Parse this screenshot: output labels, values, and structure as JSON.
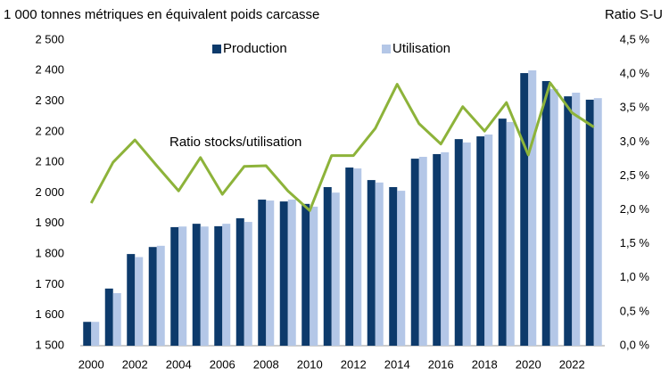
{
  "chart_data": {
    "type": "bar",
    "title": "1 000 tonnes métriques en équivalent poids carcasse",
    "y2_label": "Ratio S-U",
    "categories": [
      "2000",
      null,
      "2002",
      null,
      "2004",
      null,
      "2006",
      null,
      "2008",
      null,
      "2010",
      null,
      "2012",
      null,
      "2014",
      null,
      "2016",
      null,
      "2018",
      null,
      "2020",
      null,
      "2022",
      null
    ],
    "series": [
      {
        "name": "Production",
        "color": "#0d3a6b",
        "values": [
          1578,
          1687,
          1800,
          1823,
          1888,
          1899,
          1891,
          1917,
          1978,
          1972,
          1964,
          2019,
          2083,
          2042,
          2019,
          2112,
          2127,
          2176,
          2185,
          2243,
          2392,
          2366,
          2316,
          2305
        ]
      },
      {
        "name": "Utilisation",
        "color": "#b4c7e7",
        "values": [
          1578,
          1672,
          1790,
          1827,
          1890,
          1890,
          1899,
          1905,
          1975,
          1978,
          1955,
          2001,
          2080,
          2034,
          2007,
          2118,
          2133,
          2165,
          2191,
          2232,
          2401,
          2340,
          2328,
          2310
        ]
      },
      {
        "name": "Ratio stocks/utilisation",
        "color": "#8db33a",
        "type": "line",
        "axis": "y2",
        "values": [
          2.1,
          2.7,
          3.03,
          2.65,
          2.28,
          2.77,
          2.23,
          2.64,
          2.65,
          2.28,
          1.99,
          2.8,
          2.8,
          3.2,
          3.85,
          3.27,
          2.97,
          3.52,
          3.16,
          3.58,
          2.81,
          3.87,
          3.43,
          3.22
        ]
      }
    ],
    "ylim": [
      1500,
      2500
    ],
    "yticks": [
      {
        "value": 1500,
        "label": "1 500"
      },
      {
        "value": 1600,
        "label": "1 600"
      },
      {
        "value": 1700,
        "label": "1 700"
      },
      {
        "value": 1800,
        "label": "1 800"
      },
      {
        "value": 1900,
        "label": "1 900"
      },
      {
        "value": 2000,
        "label": "2 000"
      },
      {
        "value": 2100,
        "label": "2 100"
      },
      {
        "value": 2200,
        "label": "2 200"
      },
      {
        "value": 2300,
        "label": "2 300"
      },
      {
        "value": 2400,
        "label": "2 400"
      },
      {
        "value": 2500,
        "label": "2 500"
      }
    ],
    "y2lim": [
      0,
      4.5
    ],
    "y2ticks": [
      {
        "value": 0,
        "label": "0,0 %"
      },
      {
        "value": 0.5,
        "label": "0,5 %"
      },
      {
        "value": 1,
        "label": "1,0 %"
      },
      {
        "value": 1.5,
        "label": "1,5 %"
      },
      {
        "value": 2,
        "label": "2,0 %"
      },
      {
        "value": 2.5,
        "label": "2,5 %"
      },
      {
        "value": 3,
        "label": "3,0 %"
      },
      {
        "value": 3.5,
        "label": "3,5 %"
      },
      {
        "value": 4,
        "label": "4,0 %"
      },
      {
        "value": 4.5,
        "label": "4,5 %"
      }
    ],
    "grid": false
  }
}
